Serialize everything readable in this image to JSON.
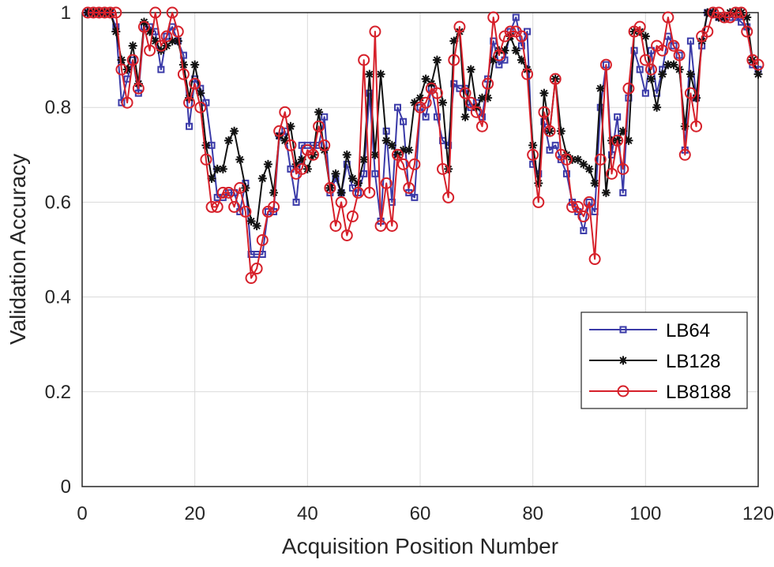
{
  "chart_data": {
    "type": "line",
    "xlabel": "Acquisition Position Number",
    "ylabel": "Validation Accuracy",
    "xlim": [
      0,
      120
    ],
    "ylim": [
      0,
      1
    ],
    "xticks": [
      0,
      20,
      40,
      60,
      80,
      100,
      120
    ],
    "yticks": [
      0,
      0.2,
      0.4,
      0.6,
      0.8,
      1
    ],
    "ytick_labels": [
      "0",
      "0.2",
      "0.4",
      "0.6",
      "0.8",
      "1"
    ],
    "grid": true,
    "legend_position": "lower-right",
    "x": [
      1,
      2,
      3,
      4,
      5,
      6,
      7,
      8,
      9,
      10,
      11,
      12,
      13,
      14,
      15,
      16,
      17,
      18,
      19,
      20,
      21,
      22,
      23,
      24,
      25,
      26,
      27,
      28,
      29,
      30,
      31,
      32,
      33,
      34,
      35,
      36,
      37,
      38,
      39,
      40,
      41,
      42,
      43,
      44,
      45,
      46,
      47,
      48,
      49,
      50,
      51,
      52,
      53,
      54,
      55,
      56,
      57,
      58,
      59,
      60,
      61,
      62,
      63,
      64,
      65,
      66,
      67,
      68,
      69,
      70,
      71,
      72,
      73,
      74,
      75,
      76,
      77,
      78,
      79,
      80,
      81,
      82,
      83,
      84,
      85,
      86,
      87,
      88,
      89,
      90,
      91,
      92,
      93,
      94,
      95,
      96,
      97,
      98,
      99,
      100,
      101,
      102,
      103,
      104,
      105,
      106,
      107,
      108,
      109,
      110,
      111,
      112,
      113,
      114,
      115,
      116,
      117,
      118,
      119,
      120
    ],
    "series": [
      {
        "name": "LB64",
        "color": "#3a3aa8",
        "marker": "square",
        "values": [
          1,
          1,
          1,
          1,
          1,
          0.97,
          0.81,
          0.86,
          0.9,
          0.83,
          0.97,
          0.97,
          0.96,
          0.88,
          0.95,
          0.97,
          0.94,
          0.91,
          0.76,
          0.86,
          0.84,
          0.81,
          0.72,
          0.61,
          0.61,
          0.62,
          0.62,
          0.58,
          0.64,
          0.49,
          0.49,
          0.49,
          0.58,
          0.58,
          0.74,
          0.75,
          0.67,
          0.6,
          0.72,
          0.72,
          0.72,
          0.72,
          0.78,
          0.62,
          0.65,
          0.62,
          0.68,
          0.63,
          0.62,
          0.66,
          0.83,
          0.66,
          0.56,
          0.75,
          0.6,
          0.8,
          0.77,
          0.62,
          0.61,
          0.8,
          0.78,
          0.84,
          0.78,
          0.73,
          0.72,
          0.85,
          0.84,
          0.84,
          0.8,
          0.81,
          0.78,
          0.86,
          0.94,
          0.89,
          0.9,
          0.96,
          0.99,
          0.93,
          0.96,
          0.68,
          0.66,
          0.77,
          0.71,
          0.72,
          0.69,
          0.66,
          0.6,
          0.58,
          0.54,
          0.6,
          0.58,
          0.8,
          0.89,
          0.7,
          0.78,
          0.62,
          0.82,
          0.92,
          0.88,
          0.83,
          0.92,
          0.83,
          0.88,
          0.95,
          0.93,
          0.91,
          0.71,
          0.94,
          0.82,
          0.93,
          1,
          1,
          0.99,
          0.99,
          0.99,
          0.99,
          0.98,
          0.97,
          0.89,
          0.88
        ]
      },
      {
        "name": "LB128",
        "color": "#111111",
        "marker": "star",
        "values": [
          1,
          1,
          1,
          1,
          1,
          0.96,
          0.9,
          0.88,
          0.93,
          0.85,
          0.98,
          0.96,
          0.94,
          0.92,
          0.93,
          0.94,
          0.94,
          0.89,
          0.82,
          0.89,
          0.83,
          0.72,
          0.65,
          0.67,
          0.67,
          0.73,
          0.75,
          0.69,
          0.63,
          0.56,
          0.55,
          0.65,
          0.68,
          0.62,
          0.74,
          0.73,
          0.76,
          0.68,
          0.69,
          0.67,
          0.7,
          0.79,
          0.71,
          0.63,
          0.66,
          0.62,
          0.7,
          0.65,
          0.64,
          0.69,
          0.87,
          0.7,
          0.87,
          0.73,
          0.72,
          0.7,
          0.71,
          0.71,
          0.81,
          0.82,
          0.86,
          0.85,
          0.9,
          0.81,
          0.67,
          0.94,
          0.96,
          0.78,
          0.88,
          0.8,
          0.82,
          0.82,
          0.9,
          0.92,
          0.92,
          0.95,
          0.92,
          0.9,
          0.88,
          0.72,
          0.64,
          0.83,
          0.75,
          0.86,
          0.75,
          0.7,
          0.69,
          0.69,
          0.68,
          0.67,
          0.64,
          0.84,
          0.62,
          0.73,
          0.73,
          0.75,
          0.73,
          0.96,
          0.96,
          0.95,
          0.86,
          0.8,
          0.87,
          0.89,
          0.89,
          0.88,
          0.76,
          0.87,
          0.82,
          0.94,
          1,
          1,
          0.99,
          0.99,
          1,
          1,
          1,
          0.99,
          0.9,
          0.87
        ]
      },
      {
        "name": "LB8188",
        "color": "#d6202a",
        "marker": "circle",
        "values": [
          1,
          1,
          1,
          1,
          1,
          1,
          0.88,
          0.81,
          0.9,
          0.84,
          0.97,
          0.92,
          1,
          0.93,
          0.95,
          1,
          0.96,
          0.87,
          0.81,
          0.85,
          0.8,
          0.69,
          0.59,
          0.59,
          0.62,
          0.62,
          0.59,
          0.63,
          0.58,
          0.44,
          0.46,
          0.52,
          0.58,
          0.59,
          0.75,
          0.79,
          0.72,
          0.66,
          0.67,
          0.71,
          0.7,
          0.76,
          0.72,
          0.63,
          0.55,
          0.6,
          0.53,
          0.57,
          0.62,
          0.9,
          0.62,
          0.96,
          0.55,
          0.64,
          0.55,
          0.7,
          0.68,
          0.63,
          0.68,
          0.8,
          0.81,
          0.84,
          0.83,
          0.67,
          0.61,
          0.9,
          0.97,
          0.83,
          0.81,
          0.79,
          0.76,
          0.85,
          0.99,
          0.91,
          0.95,
          0.96,
          0.96,
          0.95,
          0.87,
          0.7,
          0.6,
          0.79,
          0.75,
          0.86,
          0.7,
          0.69,
          0.59,
          0.59,
          0.57,
          0.6,
          0.48,
          0.69,
          0.89,
          0.66,
          0.73,
          0.67,
          0.84,
          0.96,
          0.97,
          0.9,
          0.88,
          0.93,
          0.92,
          0.99,
          0.93,
          0.91,
          0.7,
          0.83,
          0.76,
          0.95,
          0.96,
          1,
          1,
          0.99,
          0.99,
          1,
          1,
          0.96,
          0.9,
          0.89
        ]
      }
    ]
  }
}
